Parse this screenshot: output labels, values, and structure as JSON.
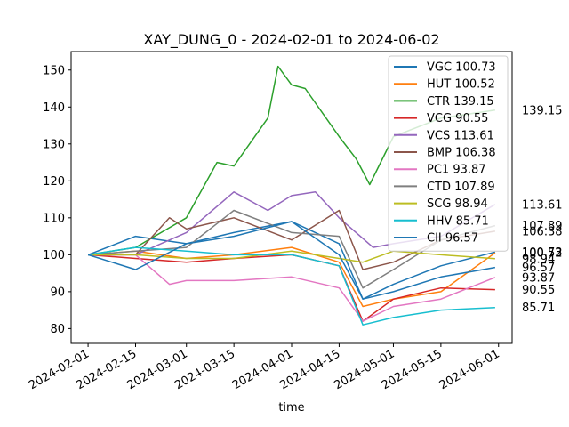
{
  "chart_data": {
    "type": "line",
    "title": "XAY_DUNG_0 - 2024-02-01 to 2024-06-02",
    "xlabel": "time",
    "ylabel": "",
    "x_ticks": [
      "2024-02-01",
      "2024-02-15",
      "2024-03-01",
      "2024-03-15",
      "2024-04-01",
      "2024-04-15",
      "2024-05-01",
      "2024-05-15",
      "2024-06-01"
    ],
    "y_ticks": [
      80,
      90,
      100,
      110,
      120,
      130,
      140,
      150
    ],
    "xlim": [
      "2024-01-27",
      "2024-06-05"
    ],
    "ylim": [
      76,
      155
    ],
    "grid": false,
    "legend_position": "top-right",
    "series": [
      {
        "name": "VGC",
        "legend": "VGC 100.73",
        "end_label": "100.73",
        "color": "#1f77b4",
        "x": [
          "2024-02-01",
          "2024-02-15",
          "2024-03-01",
          "2024-03-15",
          "2024-04-01",
          "2024-04-15",
          "2024-04-22",
          "2024-05-01",
          "2024-05-15",
          "2024-05-31"
        ],
        "y": [
          100,
          105,
          103,
          106,
          109,
          103,
          88,
          92,
          97,
          100.73
        ]
      },
      {
        "name": "HUT",
        "legend": "HUT 100.52",
        "end_label": "100.52",
        "color": "#ff7f0e",
        "x": [
          "2024-02-01",
          "2024-02-15",
          "2024-03-01",
          "2024-03-15",
          "2024-04-01",
          "2024-04-15",
          "2024-04-22",
          "2024-05-01",
          "2024-05-15",
          "2024-05-31"
        ],
        "y": [
          100,
          101,
          99,
          100,
          102,
          98,
          86,
          88,
          90,
          100.52
        ]
      },
      {
        "name": "CTR",
        "legend": "CTR 139.15",
        "end_label": "139.15",
        "color": "#2ca02c",
        "x": [
          "2024-02-01",
          "2024-02-15",
          "2024-03-01",
          "2024-03-10",
          "2024-03-15",
          "2024-03-25",
          "2024-03-28",
          "2024-04-01",
          "2024-04-05",
          "2024-04-15",
          "2024-04-20",
          "2024-04-24",
          "2024-05-01",
          "2024-05-15",
          "2024-05-31"
        ],
        "y": [
          100,
          102,
          110,
          125,
          124,
          137,
          151,
          146,
          145,
          132,
          126,
          119,
          132,
          137,
          139.15
        ]
      },
      {
        "name": "VCG",
        "legend": "VCG 90.55",
        "end_label": "90.55",
        "color": "#d62728",
        "x": [
          "2024-02-01",
          "2024-02-15",
          "2024-03-01",
          "2024-03-15",
          "2024-04-01",
          "2024-04-15",
          "2024-04-22",
          "2024-05-01",
          "2024-05-15",
          "2024-05-31"
        ],
        "y": [
          100,
          99,
          98,
          99,
          100,
          97,
          82,
          88,
          91,
          90.55
        ]
      },
      {
        "name": "VCS",
        "legend": "VCS 113.61",
        "end_label": "113.61",
        "color": "#9467bd",
        "x": [
          "2024-02-01",
          "2024-02-15",
          "2024-03-01",
          "2024-03-15",
          "2024-03-25",
          "2024-04-01",
          "2024-04-08",
          "2024-04-15",
          "2024-04-25",
          "2024-05-01",
          "2024-05-15",
          "2024-05-31"
        ],
        "y": [
          100,
          100,
          106,
          117,
          112,
          116,
          117,
          110,
          102,
          103,
          105,
          113.61
        ]
      },
      {
        "name": "BMP",
        "legend": "BMP 106.38",
        "end_label": "106.38",
        "color": "#8c564b",
        "x": [
          "2024-02-01",
          "2024-02-15",
          "2024-02-25",
          "2024-03-01",
          "2024-03-15",
          "2024-04-01",
          "2024-04-15",
          "2024-04-22",
          "2024-05-01",
          "2024-05-15",
          "2024-05-31"
        ],
        "y": [
          100,
          100,
          110,
          107,
          110,
          104,
          112,
          96,
          98,
          104,
          106.38
        ]
      },
      {
        "name": "PC1",
        "legend": "PC1 93.87",
        "end_label": "93.87",
        "color": "#e377c2",
        "x": [
          "2024-02-01",
          "2024-02-15",
          "2024-02-25",
          "2024-03-01",
          "2024-03-15",
          "2024-04-01",
          "2024-04-15",
          "2024-04-22",
          "2024-05-01",
          "2024-05-15",
          "2024-05-31"
        ],
        "y": [
          100,
          100,
          92,
          93,
          93,
          94,
          91,
          82,
          86,
          88,
          93.87
        ]
      },
      {
        "name": "CTD",
        "legend": "CTD 107.89",
        "end_label": "107.89",
        "color": "#7f7f7f",
        "x": [
          "2024-02-01",
          "2024-02-15",
          "2024-03-01",
          "2024-03-15",
          "2024-04-01",
          "2024-04-15",
          "2024-04-22",
          "2024-05-01",
          "2024-05-15",
          "2024-05-31"
        ],
        "y": [
          100,
          101,
          102,
          112,
          106,
          105,
          91,
          96,
          104,
          107.89
        ]
      },
      {
        "name": "SCG",
        "legend": "SCG 98.94",
        "end_label": "98.94",
        "color": "#bcbd22",
        "x": [
          "2024-02-01",
          "2024-02-15",
          "2024-03-01",
          "2024-03-15",
          "2024-04-01",
          "2024-04-15",
          "2024-04-22",
          "2024-05-01",
          "2024-05-15",
          "2024-05-31"
        ],
        "y": [
          100,
          100,
          99,
          99,
          101,
          99,
          98,
          101,
          100,
          98.94
        ]
      },
      {
        "name": "HHV",
        "legend": "HHV 85.71",
        "end_label": "85.71",
        "color": "#17becf",
        "x": [
          "2024-02-01",
          "2024-02-15",
          "2024-03-01",
          "2024-03-15",
          "2024-04-01",
          "2024-04-15",
          "2024-04-22",
          "2024-05-01",
          "2024-05-15",
          "2024-05-31"
        ],
        "y": [
          100,
          102,
          101,
          100,
          100,
          97,
          81,
          83,
          85,
          85.71
        ]
      },
      {
        "name": "CII",
        "legend": "CII 96.57",
        "end_label": "96.57",
        "color": "#1f77b4",
        "x": [
          "2024-02-01",
          "2024-02-15",
          "2024-03-01",
          "2024-03-15",
          "2024-04-01",
          "2024-04-15",
          "2024-04-22",
          "2024-05-01",
          "2024-05-15",
          "2024-05-31"
        ],
        "y": [
          100,
          96,
          103,
          105,
          109,
          100,
          88,
          90,
          94,
          96.57
        ]
      }
    ]
  }
}
